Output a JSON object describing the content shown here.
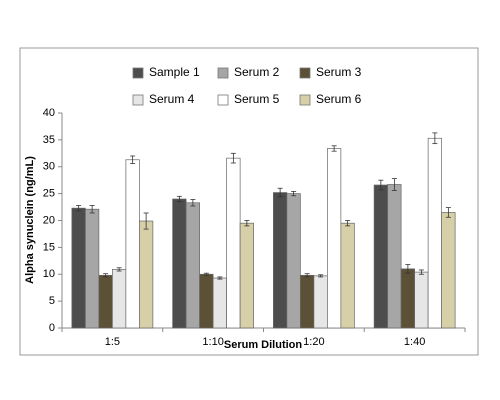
{
  "chart_data": {
    "type": "bar",
    "x_label": "Serum Dilution",
    "y_label": "Alpha synuclein (ng/mL)",
    "categories": [
      "1:5",
      "1:10",
      "1:20",
      "1:40"
    ],
    "series": [
      {
        "name": "Sample 1",
        "color": "#4d4d4d",
        "values": [
          22.3,
          24,
          25.2,
          26.6
        ],
        "errors": [
          0.5,
          0.5,
          0.8,
          0.9
        ]
      },
      {
        "name": "Serum 2",
        "color": "#a6a6a6",
        "values": [
          22.1,
          23.3,
          25,
          26.7
        ],
        "errors": [
          0.7,
          0.6,
          0.4,
          1.1
        ]
      },
      {
        "name": "Serum 3",
        "color": "#5c5037",
        "values": [
          9.8,
          10,
          9.8,
          11
        ],
        "errors": [
          0.3,
          0.2,
          0.3,
          0.8
        ]
      },
      {
        "name": "Serum 4",
        "color": "#e6e6e6",
        "values": [
          10.9,
          9.3,
          9.7,
          10.4
        ],
        "errors": [
          0.3,
          0.2,
          0.2,
          0.4
        ]
      },
      {
        "name": "Serum 5",
        "color": "#ffffff",
        "values": [
          31.3,
          31.6,
          33.4,
          35.3
        ],
        "errors": [
          0.7,
          0.9,
          0.5,
          1.0
        ]
      },
      {
        "name": "Serum 6",
        "color": "#d6cfa8",
        "values": [
          19.9,
          19.5,
          19.5,
          21.5
        ],
        "errors": [
          1.5,
          0.5,
          0.5,
          0.9
        ]
      }
    ],
    "ylim": [
      0,
      40
    ],
    "yticks": [
      0,
      5,
      10,
      15,
      20,
      25,
      30,
      35,
      40
    ],
    "grid": false,
    "legend": "top"
  }
}
